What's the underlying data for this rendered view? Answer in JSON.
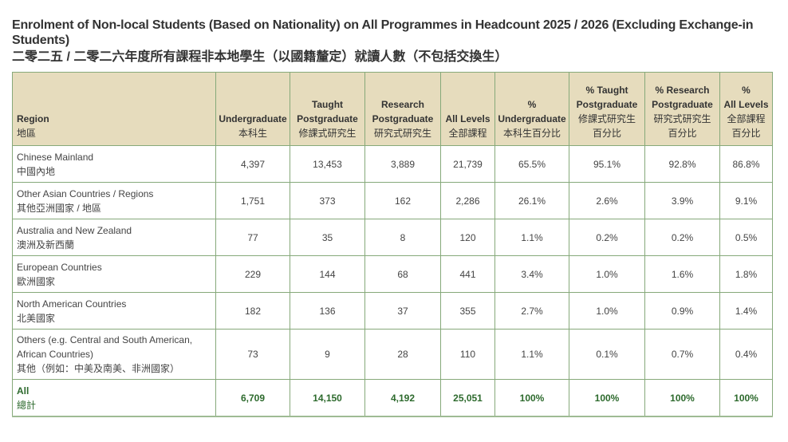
{
  "title": "Enrolment of Non-local Students (Based on Nationality) on All Programmes in Headcount 2025 / 2026 (Excluding Exchange-in Students)",
  "subtitle": "二零二五 / 二零二六年度所有課程非本地學生（以國籍釐定）就讀人數（不包括交換生）",
  "colors": {
    "header_bg": "#e6dcbd",
    "border": "#86a97a",
    "total_text": "#2d6a2d"
  },
  "headers": [
    {
      "en": "Region",
      "zh": "地區"
    },
    {
      "en": "Undergraduate",
      "zh": "本科生"
    },
    {
      "en": "Taught Postgraduate",
      "zh": "修課式研究生"
    },
    {
      "en": "Research Postgraduate",
      "zh": "研究式研究生"
    },
    {
      "en": "All Levels",
      "zh": "全部課程"
    },
    {
      "en": "% Undergraduate",
      "zh": "本科生百分比"
    },
    {
      "en": "% Taught Postgraduate",
      "zh": "修課式研究生百分比"
    },
    {
      "en": "% Research Postgraduate",
      "zh": "研究式研究生百分比"
    },
    {
      "en": "% All Levels",
      "zh": "全部課程百分比"
    }
  ],
  "rows": [
    {
      "en": "Chinese Mainland",
      "zh": "中國內地",
      "values": [
        "4,397",
        "13,453",
        "3,889",
        "21,739",
        "65.5%",
        "95.1%",
        "92.8%",
        "86.8%"
      ]
    },
    {
      "en": "Other Asian Countries / Regions",
      "zh": "其他亞洲國家 / 地區",
      "values": [
        "1,751",
        "373",
        "162",
        "2,286",
        "26.1%",
        "2.6%",
        "3.9%",
        "9.1%"
      ]
    },
    {
      "en": "Australia and New Zealand",
      "zh": "澳洲及新西蘭",
      "values": [
        "77",
        "35",
        "8",
        "120",
        "1.1%",
        "0.2%",
        "0.2%",
        "0.5%"
      ]
    },
    {
      "en": "European Countries",
      "zh": "歐洲國家",
      "values": [
        "229",
        "144",
        "68",
        "441",
        "3.4%",
        "1.0%",
        "1.6%",
        "1.8%"
      ]
    },
    {
      "en": "North American Countries",
      "zh": "北美國家",
      "values": [
        "182",
        "136",
        "37",
        "355",
        "2.7%",
        "1.0%",
        "0.9%",
        "1.4%"
      ]
    },
    {
      "en": "Others (e.g. Central and South American, African Countries)",
      "zh": "其他（例如：中美及南美、非洲國家）",
      "values": [
        "73",
        "9",
        "28",
        "110",
        "1.1%",
        "0.1%",
        "0.7%",
        "0.4%"
      ]
    }
  ],
  "total": {
    "en": "All",
    "zh": "總計",
    "values": [
      "6,709",
      "14,150",
      "4,192",
      "25,051",
      "100%",
      "100%",
      "100%",
      "100%"
    ]
  }
}
